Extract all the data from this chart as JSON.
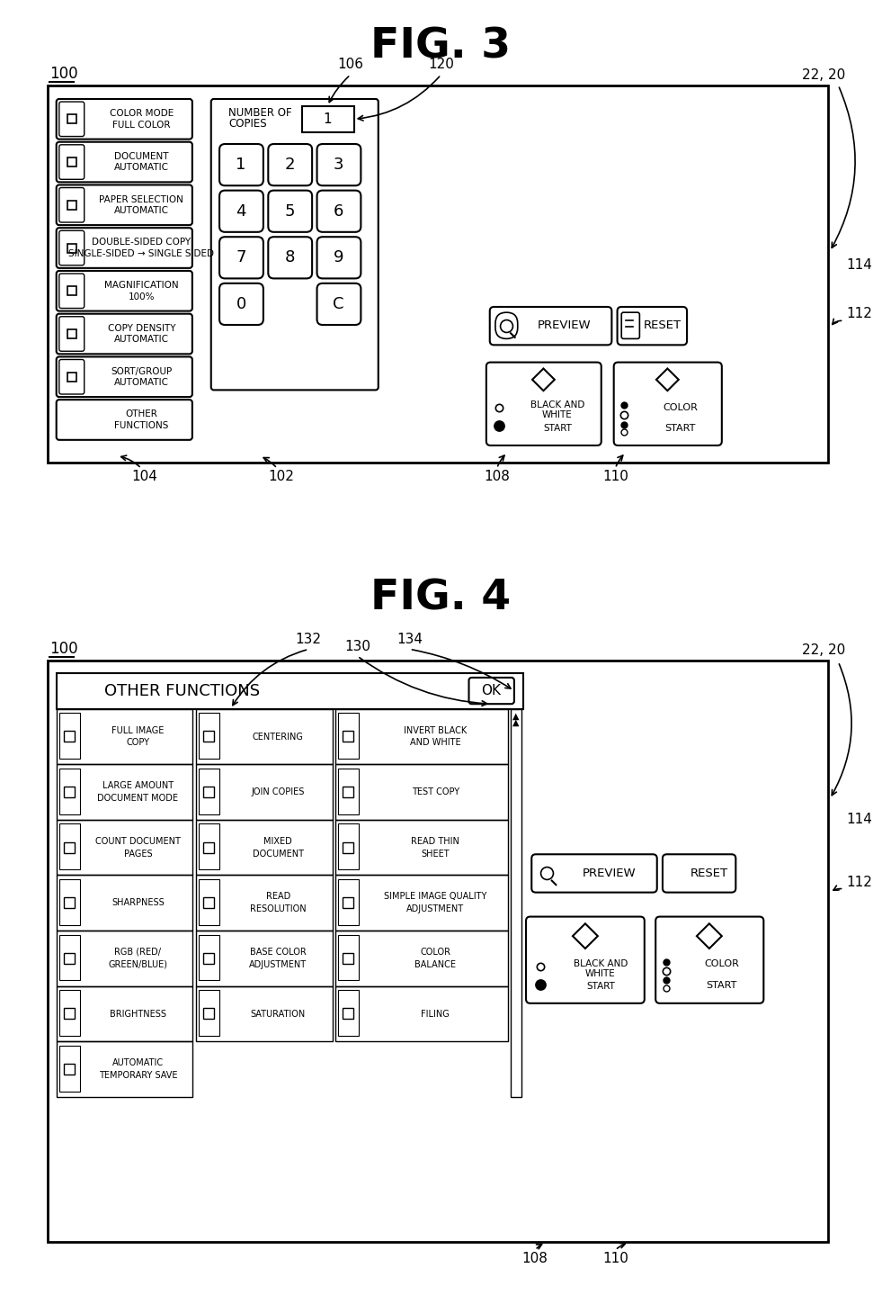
{
  "fig3_title": "FIG. 3",
  "fig4_title": "FIG. 4",
  "bg_color": "#ffffff",
  "fig3": {
    "label_100": "100",
    "label_22_20": "22, 20",
    "label_106": "106",
    "label_120": "120",
    "label_104": "104",
    "label_102": "102",
    "label_108": "108",
    "label_110": "110",
    "label_114": "114",
    "label_112": "112",
    "left_buttons": [
      {
        "lines": [
          "COLOR MODE",
          "FULL COLOR"
        ],
        "has_icon": true
      },
      {
        "lines": [
          "DOCUMENT",
          "AUTOMATIC"
        ],
        "has_icon": true
      },
      {
        "lines": [
          "PAPER SELECTION",
          "AUTOMATIC"
        ],
        "has_icon": true
      },
      {
        "lines": [
          "DOUBLE-SIDED COPY",
          "SINGLE-SIDED → SINGLE SIDED"
        ],
        "has_icon": true
      },
      {
        "lines": [
          "MAGNIFICATION",
          "100%"
        ],
        "has_icon": true
      },
      {
        "lines": [
          "COPY DENSITY",
          "AUTOMATIC"
        ],
        "has_icon": true
      },
      {
        "lines": [
          "SORT/GROUP",
          "AUTOMATIC"
        ],
        "has_icon": true
      },
      {
        "lines": [
          "OTHER",
          "FUNCTIONS"
        ],
        "has_icon": false
      }
    ],
    "preview_label": "PREVIEW",
    "reset_label": "RESET",
    "bw_start_label": [
      "BLACK AND",
      "WHITE",
      "START"
    ],
    "color_start_label": [
      "COLOR",
      "START"
    ]
  },
  "fig4": {
    "label_100": "100",
    "label_22_20": "22, 20",
    "label_132": "132",
    "label_130": "130",
    "label_134": "134",
    "label_108": "108",
    "label_110": "110",
    "label_114": "114",
    "label_112": "112",
    "title_bar": "OTHER FUNCTIONS",
    "ok_label": "OK",
    "grid_buttons": [
      [
        {
          "lines": [
            "FULL IMAGE",
            "COPY"
          ],
          "has_icon": true
        },
        {
          "lines": [
            "CENTERING"
          ],
          "has_icon": true
        },
        {
          "lines": [
            "INVERT BLACK",
            "AND WHITE"
          ],
          "has_icon": true,
          "selected": false
        }
      ],
      [
        {
          "lines": [
            "LARGE AMOUNT",
            "DOCUMENT MODE"
          ],
          "has_icon": true
        },
        {
          "lines": [
            "JOIN COPIES"
          ],
          "has_icon": true
        },
        {
          "lines": [
            "TEST COPY"
          ],
          "has_icon": true
        }
      ],
      [
        {
          "lines": [
            "COUNT DOCUMENT",
            "PAGES"
          ],
          "has_icon": true
        },
        {
          "lines": [
            "MIXED",
            "DOCUMENT"
          ],
          "has_icon": true
        },
        {
          "lines": [
            "READ THIN",
            "SHEET"
          ],
          "has_icon": true
        }
      ],
      [
        {
          "lines": [
            "SHARPNESS"
          ],
          "has_icon": true
        },
        {
          "lines": [
            "READ",
            "RESOLUTION"
          ],
          "has_icon": true
        },
        {
          "lines": [
            "SIMPLE IMAGE QUALITY",
            "ADJUSTMENT"
          ],
          "has_icon": true
        }
      ],
      [
        {
          "lines": [
            "RGB (RED/",
            "GREEN/BLUE)"
          ],
          "has_icon": true
        },
        {
          "lines": [
            "BASE COLOR",
            "ADJUSTMENT"
          ],
          "has_icon": true
        },
        {
          "lines": [
            "COLOR",
            "BALANCE"
          ],
          "has_icon": true
        }
      ],
      [
        {
          "lines": [
            "BRIGHTNESS"
          ],
          "has_icon": true
        },
        {
          "lines": [
            "SATURATION"
          ],
          "has_icon": true
        },
        {
          "lines": [
            "FILING"
          ],
          "has_icon": true
        }
      ],
      [
        {
          "lines": [
            "AUTOMATIC",
            "TEMPORARY SAVE"
          ],
          "has_icon": true
        },
        null,
        null
      ]
    ],
    "preview_label": "PREVIEW",
    "reset_label": "RESET",
    "bw_start_label": [
      "BLACK AND",
      "WHITE",
      "START"
    ],
    "color_start_label": [
      "COLOR",
      "START"
    ]
  }
}
